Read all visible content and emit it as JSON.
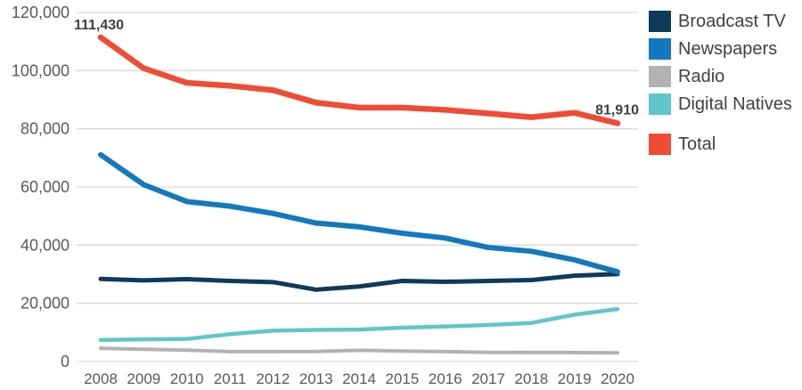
{
  "chart_data": {
    "type": "line",
    "title": "",
    "xlabel": "",
    "ylabel": "",
    "x": [
      2008,
      2009,
      2010,
      2011,
      2012,
      2013,
      2014,
      2015,
      2016,
      2017,
      2018,
      2019,
      2020
    ],
    "x_tick_labels": [
      "2008",
      "2009",
      "2010",
      "2011",
      "2012",
      "2013",
      "2014",
      "2015",
      "2016",
      "2017",
      "2018",
      "2019",
      "2020"
    ],
    "y_tick_labels": [
      "0",
      "20,000",
      "40,000",
      "60,000",
      "80,000",
      "100,000",
      "120,000"
    ],
    "ylim": [
      0,
      120000
    ],
    "y_tick_step": 20000,
    "grid": "horizontal-only",
    "legend_position": "right",
    "series": [
      {
        "name": "Broadcast TV",
        "color": "#0e3a5c",
        "values": [
          28390,
          27900,
          28300,
          27700,
          27300,
          24700,
          25800,
          27700,
          27400,
          27700,
          28000,
          29500,
          30070
        ]
      },
      {
        "name": "Newspapers",
        "color": "#1379be",
        "values": [
          71070,
          60800,
          55000,
          53400,
          50900,
          47600,
          46300,
          44100,
          42450,
          39200,
          37900,
          34950,
          30820
        ]
      },
      {
        "name": "Radio",
        "color": "#b2b2b2",
        "values": [
          4560,
          4200,
          3900,
          3400,
          3400,
          3450,
          3850,
          3600,
          3400,
          3150,
          3100,
          3080,
          2990
        ]
      },
      {
        "name": "Digital Natives",
        "color": "#5fc6c9",
        "values": [
          7410,
          7600,
          7750,
          9400,
          10600,
          10850,
          11000,
          11650,
          12050,
          12550,
          13250,
          16100,
          18030
        ]
      },
      {
        "name": "Total",
        "color": "#f04c33",
        "values": [
          111430,
          100800,
          95800,
          94800,
          93300,
          89000,
          87300,
          87300,
          86500,
          85300,
          84000,
          85500,
          81910
        ]
      }
    ],
    "annotations": [
      {
        "text": "111,430",
        "year": 2008,
        "value": 111430
      },
      {
        "text": "81,910",
        "year": 2020,
        "value": 81910
      }
    ],
    "colors": {
      "axis_text": "#58595b",
      "annotation_text": "#414042",
      "legend_text": "#414042",
      "gridline": "#d9d9d9",
      "background": "#ffffff"
    }
  },
  "legend": {
    "items": [
      "Broadcast TV",
      "Newspapers",
      "Radio",
      "Digital Natives",
      "Total"
    ]
  }
}
